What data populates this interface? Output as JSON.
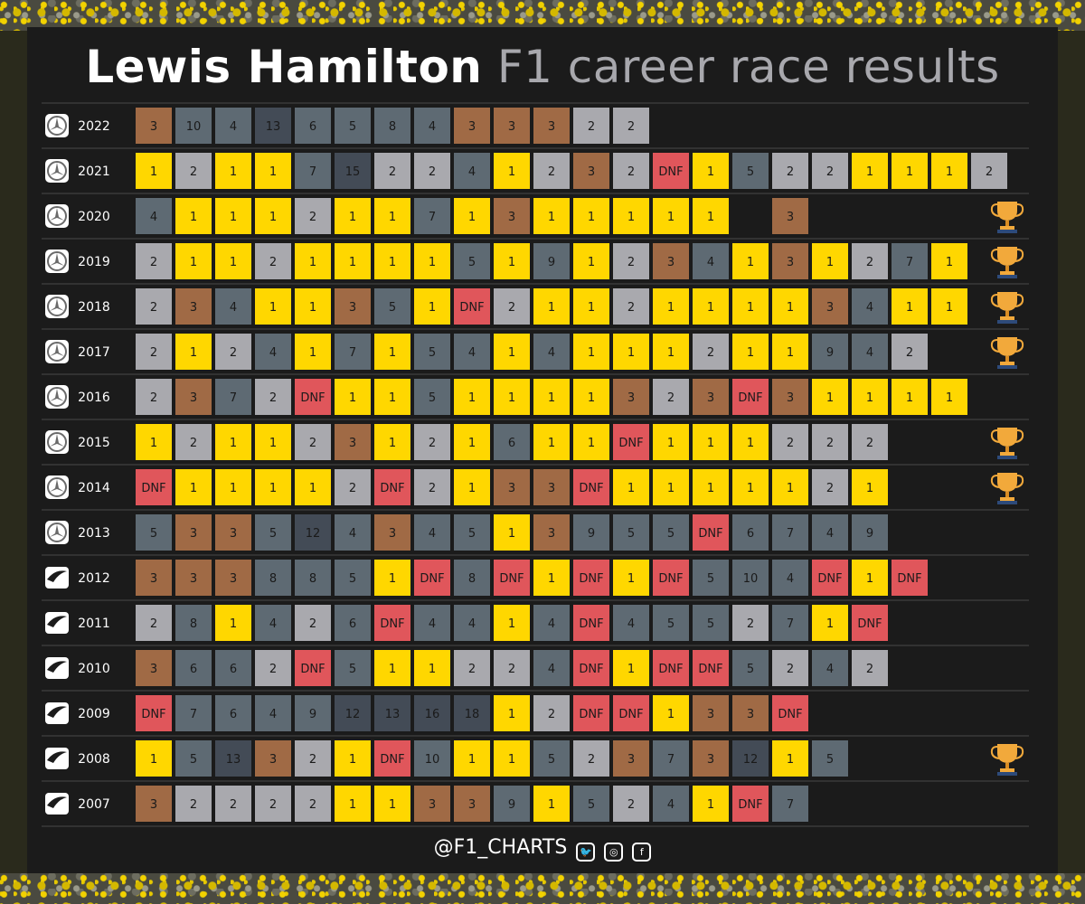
{
  "title": {
    "strong": "Lewis Hamilton",
    "light": "F1 career race results"
  },
  "footer": {
    "handle": "@F1_CHARTS",
    "social_icons": [
      "twitter-icon",
      "instagram-icon",
      "facebook-icon"
    ]
  },
  "colors": {
    "win": "#ffd700",
    "second": "#a9a9ae",
    "third": "#a06a45",
    "points": "#5e6a73",
    "outside_points": "#434b56",
    "dnf": "#e0565b",
    "grid_line": "#4a4a4a",
    "text_dark": "#1a1a1a"
  },
  "chart_data": {
    "type": "table",
    "title": "Lewis Hamilton F1 career race results",
    "legend": "none",
    "rows": [
      {
        "year": "2022",
        "team_icon": "mercedes-logo-icon",
        "champion": false,
        "results": [
          "3",
          "10",
          "4",
          "13",
          "6",
          "5",
          "8",
          "4",
          "3",
          "3",
          "3",
          "2",
          "2"
        ]
      },
      {
        "year": "2021",
        "team_icon": "mercedes-logo-icon",
        "champion": false,
        "results": [
          "1",
          "2",
          "1",
          "1",
          "7",
          "15",
          "2",
          "2",
          "4",
          "1",
          "2",
          "3",
          "2",
          "DNF",
          "1",
          "5",
          "2",
          "2",
          "1",
          "1",
          "1",
          "2"
        ]
      },
      {
        "year": "2020",
        "team_icon": "mercedes-logo-icon",
        "champion": true,
        "results": [
          "4",
          "1",
          "1",
          "1",
          "2",
          "1",
          "1",
          "7",
          "1",
          "3",
          "1",
          "1",
          "1",
          "1",
          "1",
          "",
          "3"
        ]
      },
      {
        "year": "2019",
        "team_icon": "mercedes-logo-icon",
        "champion": true,
        "results": [
          "2",
          "1",
          "1",
          "2",
          "1",
          "1",
          "1",
          "1",
          "5",
          "1",
          "9",
          "1",
          "2",
          "3",
          "4",
          "1",
          "3",
          "1",
          "2",
          "7",
          "1"
        ]
      },
      {
        "year": "2018",
        "team_icon": "mercedes-logo-icon",
        "champion": true,
        "results": [
          "2",
          "3",
          "4",
          "1",
          "1",
          "3",
          "5",
          "1",
          "DNF",
          "2",
          "1",
          "1",
          "2",
          "1",
          "1",
          "1",
          "1",
          "3",
          "4",
          "1",
          "1"
        ]
      },
      {
        "year": "2017",
        "team_icon": "mercedes-logo-icon",
        "champion": true,
        "results": [
          "2",
          "1",
          "2",
          "4",
          "1",
          "7",
          "1",
          "5",
          "4",
          "1",
          "4",
          "1",
          "1",
          "1",
          "2",
          "1",
          "1",
          "9",
          "4",
          "2"
        ]
      },
      {
        "year": "2016",
        "team_icon": "mercedes-logo-icon",
        "champion": false,
        "results": [
          "2",
          "3",
          "7",
          "2",
          "DNF",
          "1",
          "1",
          "5",
          "1",
          "1",
          "1",
          "1",
          "3",
          "2",
          "3",
          "DNF",
          "3",
          "1",
          "1",
          "1",
          "1"
        ]
      },
      {
        "year": "2015",
        "team_icon": "mercedes-logo-icon",
        "champion": true,
        "results": [
          "1",
          "2",
          "1",
          "1",
          "2",
          "3",
          "1",
          "2",
          "1",
          "6",
          "1",
          "1",
          "DNF",
          "1",
          "1",
          "1",
          "2",
          "2",
          "2"
        ]
      },
      {
        "year": "2014",
        "team_icon": "mercedes-logo-icon",
        "champion": true,
        "results": [
          "DNF",
          "1",
          "1",
          "1",
          "1",
          "2",
          "DNF",
          "2",
          "1",
          "3",
          "3",
          "DNF",
          "1",
          "1",
          "1",
          "1",
          "1",
          "2",
          "1"
        ]
      },
      {
        "year": "2013",
        "team_icon": "mercedes-logo-icon",
        "champion": false,
        "results": [
          "5",
          "3",
          "3",
          "5",
          "12",
          "4",
          "3",
          "4",
          "5",
          "1",
          "3",
          "9",
          "5",
          "5",
          "DNF",
          "6",
          "7",
          "4",
          "9"
        ]
      },
      {
        "year": "2012",
        "team_icon": "mclaren-logo-icon",
        "champion": false,
        "results": [
          "3",
          "3",
          "3",
          "8",
          "8",
          "5",
          "1",
          "DNF",
          "8",
          "DNF",
          "1",
          "DNF",
          "1",
          "DNF",
          "5",
          "10",
          "4",
          "DNF",
          "1",
          "DNF"
        ]
      },
      {
        "year": "2011",
        "team_icon": "mclaren-logo-icon",
        "champion": false,
        "results": [
          "2",
          "8",
          "1",
          "4",
          "2",
          "6",
          "DNF",
          "4",
          "4",
          "1",
          "4",
          "DNF",
          "4",
          "5",
          "5",
          "2",
          "7",
          "1",
          "DNF"
        ]
      },
      {
        "year": "2010",
        "team_icon": "mclaren-logo-icon",
        "champion": false,
        "results": [
          "3",
          "6",
          "6",
          "2",
          "DNF",
          "5",
          "1",
          "1",
          "2",
          "2",
          "4",
          "DNF",
          "1",
          "DNF",
          "DNF",
          "5",
          "2",
          "4",
          "2"
        ]
      },
      {
        "year": "2009",
        "team_icon": "mclaren-logo-icon",
        "champion": false,
        "results": [
          "DNF",
          "7",
          "6",
          "4",
          "9",
          "12",
          "13",
          "16",
          "18",
          "1",
          "2",
          "DNF",
          "DNF",
          "1",
          "3",
          "3",
          "DNF"
        ]
      },
      {
        "year": "2008",
        "team_icon": "mclaren-logo-icon",
        "champion": true,
        "results": [
          "1",
          "5",
          "13",
          "3",
          "2",
          "1",
          "DNF",
          "10",
          "1",
          "1",
          "5",
          "2",
          "3",
          "7",
          "3",
          "12",
          "1",
          "5"
        ]
      },
      {
        "year": "2007",
        "team_icon": "mclaren-logo-icon",
        "champion": false,
        "results": [
          "3",
          "2",
          "2",
          "2",
          "2",
          "1",
          "1",
          "3",
          "3",
          "9",
          "1",
          "5",
          "2",
          "4",
          "1",
          "DNF",
          "7"
        ]
      }
    ]
  }
}
